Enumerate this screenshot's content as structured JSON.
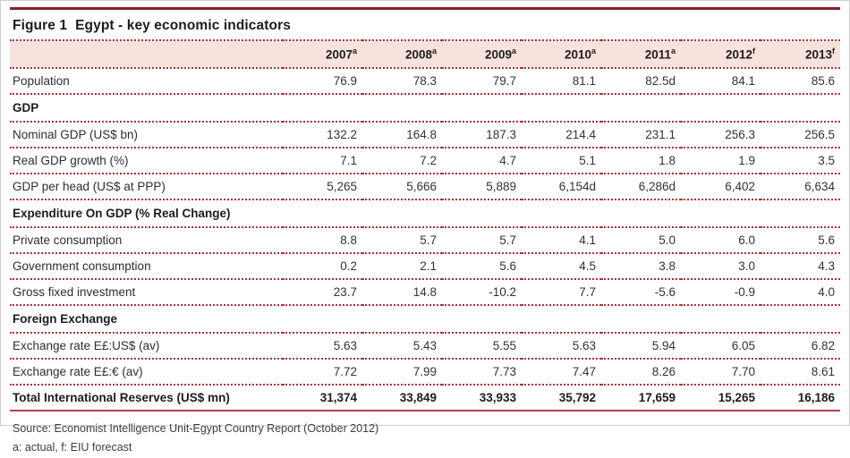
{
  "figure": {
    "label": "Figure 1",
    "title": "Egypt - key economic indicators"
  },
  "colors": {
    "top_rule": "#8a2028",
    "bottom_rule": "#b6404a",
    "dotted_rule": "#b03039",
    "header_band_bg": "#f7e2dd"
  },
  "table": {
    "columns": [
      {
        "year": "2007",
        "sup": "a"
      },
      {
        "year": "2008",
        "sup": "a"
      },
      {
        "year": "2009",
        "sup": "a"
      },
      {
        "year": "2010",
        "sup": "a"
      },
      {
        "year": "2011",
        "sup": "a"
      },
      {
        "year": "2012",
        "sup": "f"
      },
      {
        "year": "2013",
        "sup": "f"
      }
    ],
    "rows": [
      {
        "type": "data",
        "label": "Population",
        "values": [
          "76.9",
          "78.3",
          "79.7",
          "81.1",
          "82.5d",
          "84.1",
          "85.6"
        ]
      },
      {
        "type": "section",
        "label": "GDP"
      },
      {
        "type": "data",
        "label": "Nominal GDP (US$ bn)",
        "values": [
          "132.2",
          "164.8",
          "187.3",
          "214.4",
          "231.1",
          "256.3",
          "256.5"
        ]
      },
      {
        "type": "data",
        "label": "Real GDP growth (%)",
        "values": [
          "7.1",
          "7.2",
          "4.7",
          "5.1",
          "1.8",
          "1.9",
          "3.5"
        ]
      },
      {
        "type": "data",
        "label": "GDP per head (US$ at PPP)",
        "values": [
          "5,265",
          "5,666",
          "5,889",
          "6,154d",
          "6,286d",
          "6,402",
          "6,634"
        ]
      },
      {
        "type": "section",
        "label": "Expenditure On GDP (% Real Change)"
      },
      {
        "type": "data",
        "label": "Private consumption",
        "values": [
          "8.8",
          "5.7",
          "5.7",
          "4.1",
          "5.0",
          "6.0",
          "5.6"
        ]
      },
      {
        "type": "data",
        "label": "Government consumption",
        "values": [
          "0.2",
          "2.1",
          "5.6",
          "4.5",
          "3.8",
          "3.0",
          "4.3"
        ]
      },
      {
        "type": "data",
        "label": "Gross fixed investment",
        "values": [
          "23.7",
          "14.8",
          "-10.2",
          "7.7",
          "-5.6",
          "-0.9",
          "4.0"
        ]
      },
      {
        "type": "section",
        "label": "Foreign Exchange"
      },
      {
        "type": "data",
        "label": "Exchange rate E£:US$ (av)",
        "values": [
          "5.63",
          "5.43",
          "5.55",
          "5.63",
          "5.94",
          "6.05",
          "6.82"
        ]
      },
      {
        "type": "data",
        "label": "Exchange rate E£:€ (av)",
        "values": [
          "7.72",
          "7.99",
          "7.73",
          "7.47",
          "8.26",
          "7.70",
          "8.61"
        ]
      },
      {
        "type": "total",
        "label": "Total International Reserves (US$ mn)",
        "values": [
          "31,374",
          "33,849",
          "33,933",
          "35,792",
          "17,659",
          "15,265",
          "16,186"
        ]
      }
    ]
  },
  "chart_data": {
    "type": "table",
    "title": "Figure 1 Egypt - key economic indicators",
    "categories": [
      "2007a",
      "2008a",
      "2009a",
      "2010a",
      "2011a",
      "2012f",
      "2013f"
    ],
    "series": [
      {
        "name": "Population",
        "values": [
          76.9,
          78.3,
          79.7,
          81.1,
          82.5,
          84.1,
          85.6
        ]
      },
      {
        "name": "Nominal GDP (US$ bn)",
        "values": [
          132.2,
          164.8,
          187.3,
          214.4,
          231.1,
          256.3,
          256.5
        ]
      },
      {
        "name": "Real GDP growth (%)",
        "values": [
          7.1,
          7.2,
          4.7,
          5.1,
          1.8,
          1.9,
          3.5
        ]
      },
      {
        "name": "GDP per head (US$ at PPP)",
        "values": [
          5265,
          5666,
          5889,
          6154,
          6286,
          6402,
          6634
        ]
      },
      {
        "name": "Private consumption",
        "values": [
          8.8,
          5.7,
          5.7,
          4.1,
          5.0,
          6.0,
          5.6
        ]
      },
      {
        "name": "Government consumption",
        "values": [
          0.2,
          2.1,
          5.6,
          4.5,
          3.8,
          3.0,
          4.3
        ]
      },
      {
        "name": "Gross fixed investment",
        "values": [
          23.7,
          14.8,
          -10.2,
          7.7,
          -5.6,
          -0.9,
          4.0
        ]
      },
      {
        "name": "Exchange rate E£:US$ (av)",
        "values": [
          5.63,
          5.43,
          5.55,
          5.63,
          5.94,
          6.05,
          6.82
        ]
      },
      {
        "name": "Exchange rate E£:€ (av)",
        "values": [
          7.72,
          7.99,
          7.73,
          7.47,
          8.26,
          7.7,
          8.61
        ]
      },
      {
        "name": "Total International Reserves (US$ mn)",
        "values": [
          31374,
          33849,
          33933,
          35792,
          17659,
          15265,
          16186
        ]
      }
    ]
  },
  "footer": {
    "source": "Source: Economist Intelligence Unit-Egypt Country Report (October 2012)",
    "footnote": "a: actual, f: EIU forecast"
  }
}
